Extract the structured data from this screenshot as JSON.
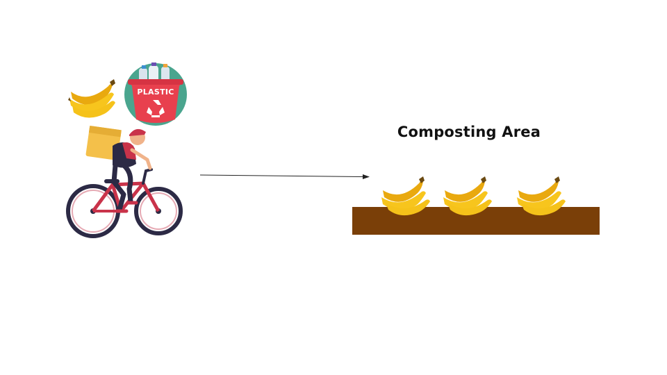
{
  "diagram": {
    "title": "Composting Area",
    "bin_label": "PLASTIC",
    "icons": {
      "cyclist": "delivery-cyclist-icon",
      "carried_banana": "banana-icon",
      "plastic_bin": "plastic-recycling-bin-icon",
      "arrow": "arrow-right-icon",
      "compost_bananas": [
        "banana-icon",
        "banana-icon",
        "banana-icon"
      ]
    },
    "colors": {
      "soil": "#7a3f08",
      "banana": "#f5c21a",
      "bin": "#e8404e",
      "bin_circle": "#4aa58e",
      "bike_frame": "#c9334a",
      "backpack": "#f4c04a"
    }
  }
}
